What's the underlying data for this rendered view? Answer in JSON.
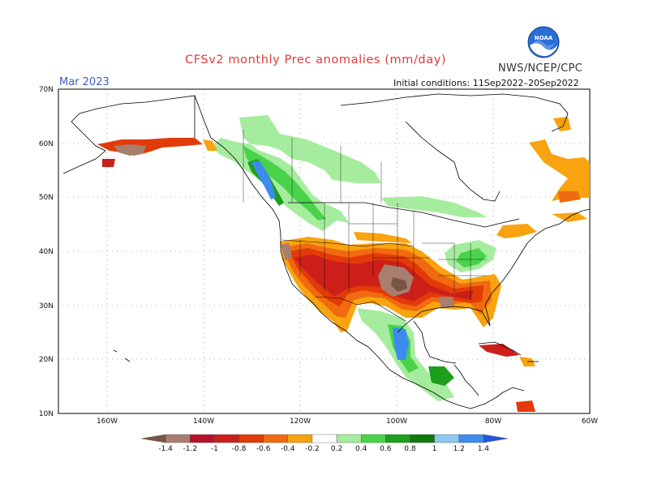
{
  "header": {
    "title": "CFSv2 monthly Prec anomalies (mm/day)",
    "agency": "NWS/NCEP/CPC",
    "month": "Mar 2023",
    "initial_conditions": "Initial conditions: 11Sep2022–20Sep2022",
    "logo_text": "NOAA"
  },
  "map": {
    "lat_labels": [
      "70N",
      "60N",
      "50N",
      "40N",
      "30N",
      "20N",
      "10N"
    ],
    "lon_labels": [
      "160W",
      "140W",
      "120W",
      "100W",
      "80W",
      "60W"
    ],
    "grid": true
  },
  "colorbar": {
    "labels": [
      "-1.4",
      "-1.2",
      "-1",
      "-0.8",
      "-0.6",
      "-0.4",
      "-0.2",
      "0.2",
      "0.4",
      "0.6",
      "0.8",
      "1",
      "1.2",
      "1.4"
    ],
    "colors": [
      "#7a5546",
      "#a87e6e",
      "#b7122b",
      "#cc1f1a",
      "#e23a08",
      "#f06a10",
      "#f8a30f",
      "#ffffff",
      "#a6ec9e",
      "#4ad34a",
      "#1ca01c",
      "#0e7a0e",
      "#8ec8f0",
      "#3c8cf0",
      "#2456dc"
    ]
  }
}
